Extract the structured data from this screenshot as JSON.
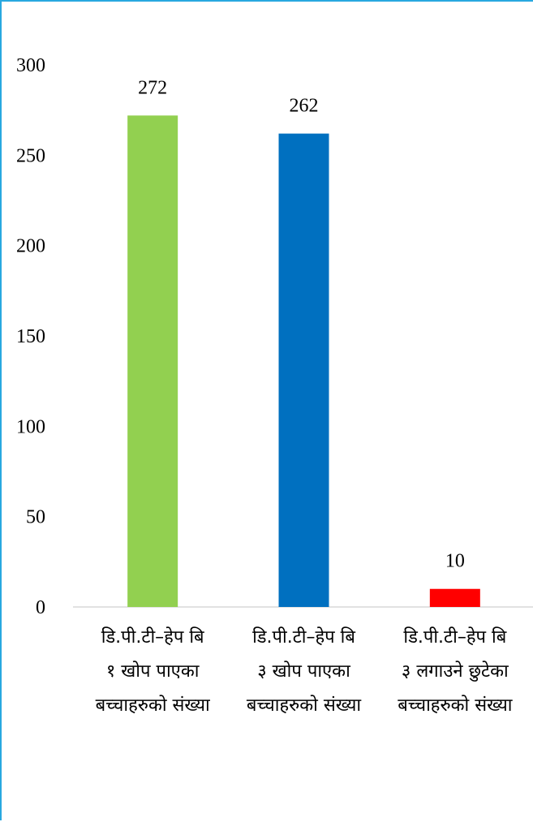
{
  "chart_data": {
    "type": "bar",
    "categories": [
      [
        "डि.पी.टी–हेप बि",
        "१ खोप पाएका",
        "बच्चाहरुको संख्या"
      ],
      [
        "डि.पी.टी–हेप बि",
        "३ खोप पाएका",
        "बच्चाहरुको संख्या"
      ],
      [
        "डि.पी.टी–हेप बि",
        "३ लगाउने छुटेका",
        "बच्चाहरुको संख्या"
      ]
    ],
    "values": [
      272,
      262,
      10
    ],
    "data_labels": [
      "272",
      "262",
      "10"
    ],
    "bar_colors": [
      "#92d050",
      "#0070c0",
      "#ff0000"
    ],
    "ylim": [
      0,
      300
    ],
    "yticks": [
      0,
      50,
      100,
      150,
      200,
      250,
      300
    ],
    "title": "",
    "xlabel": "",
    "ylabel": "",
    "grid": false,
    "legend": "none",
    "axis_color": "#d9d9d9",
    "frame_color": "#29a8e0"
  }
}
